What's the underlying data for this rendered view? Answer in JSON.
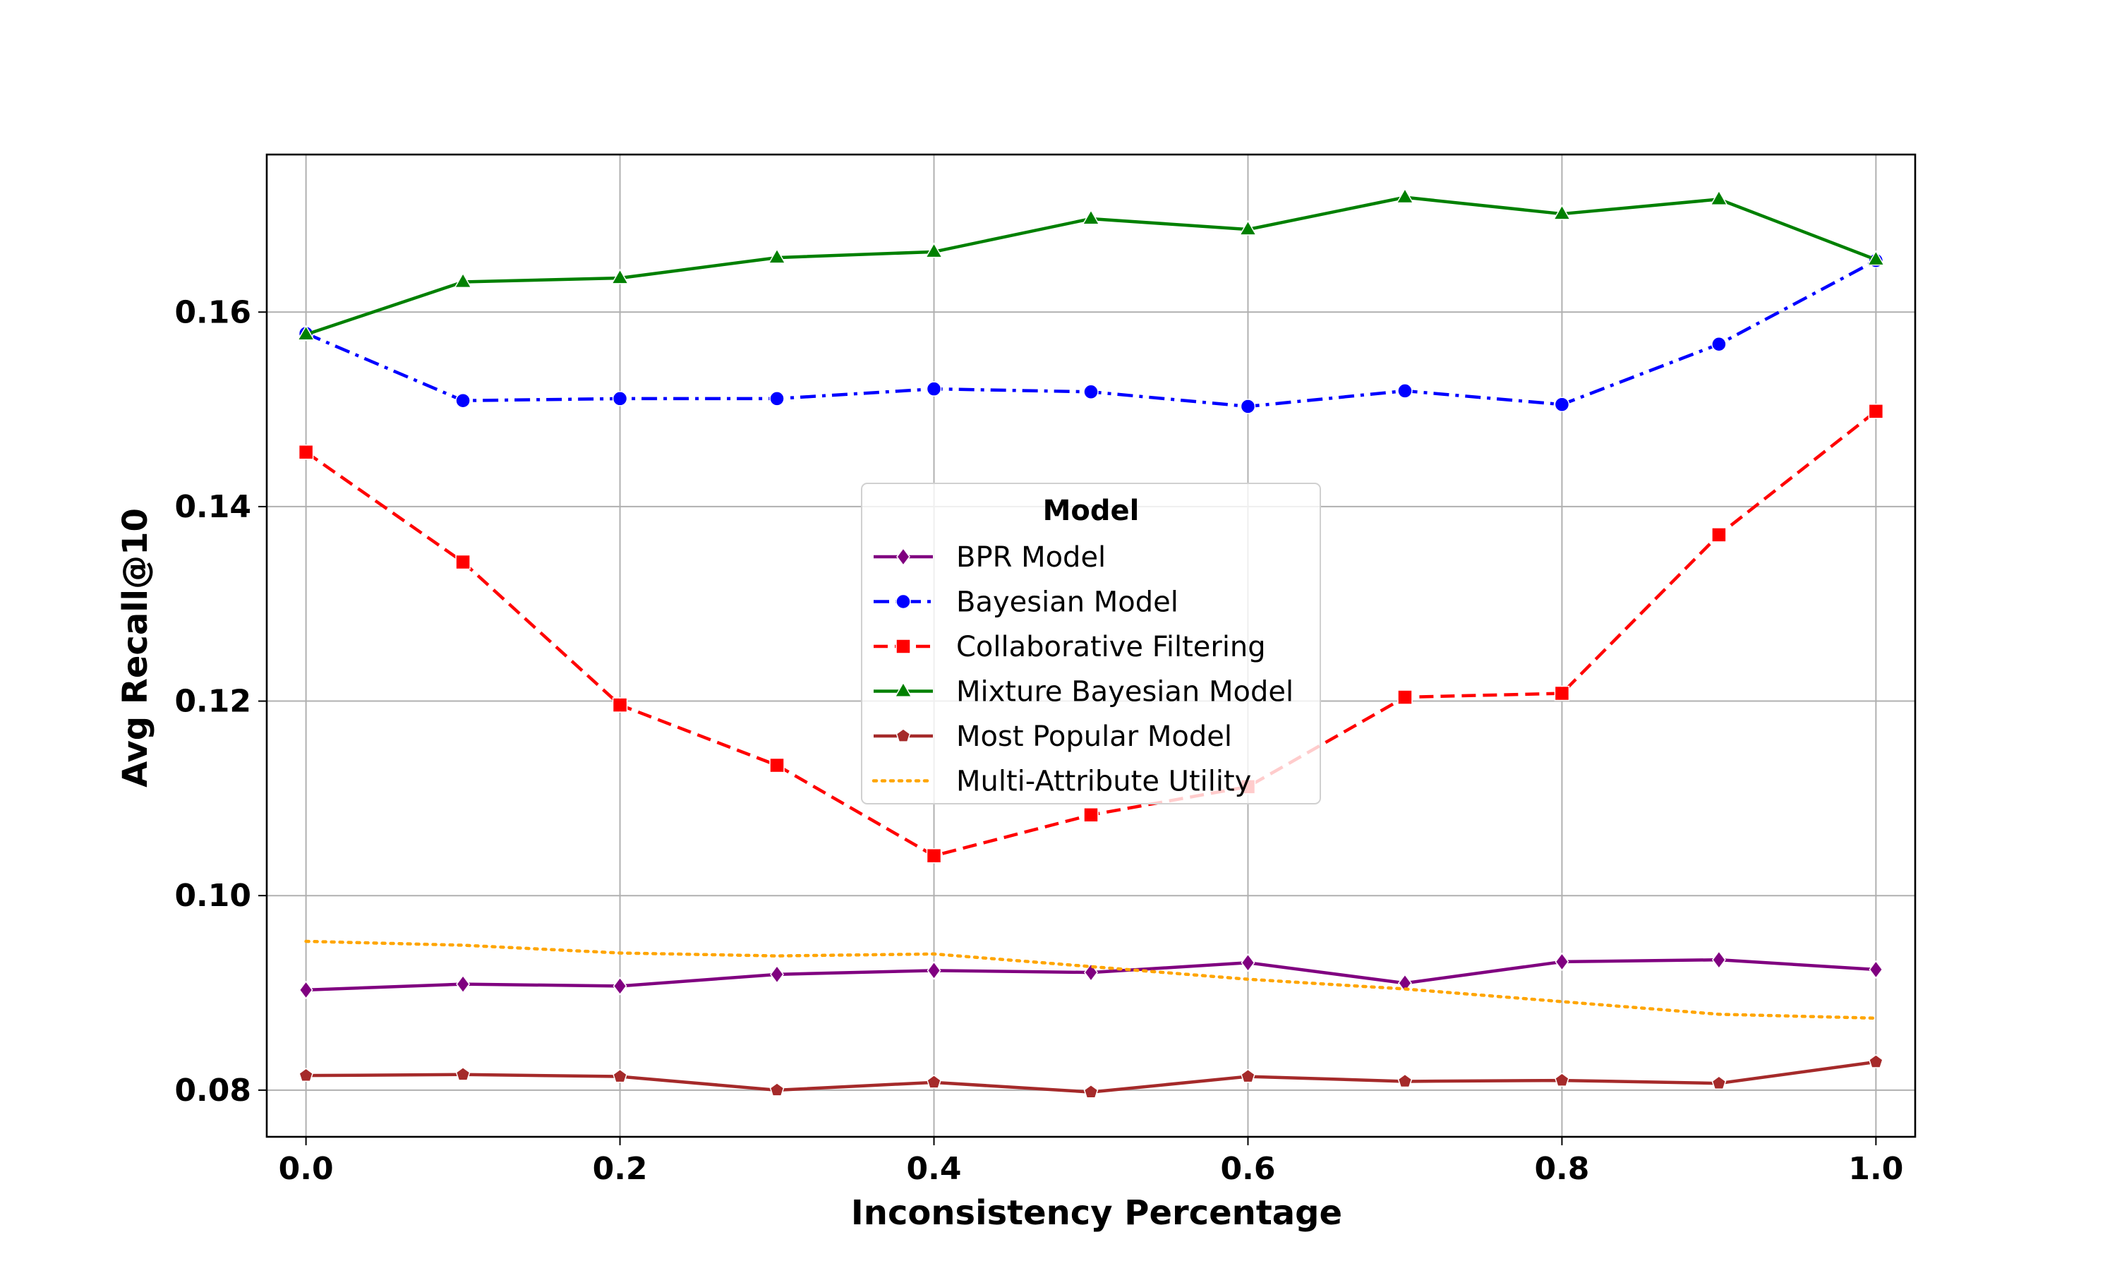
{
  "chart_data": {
    "type": "line",
    "xlabel": "Inconsistency Percentage",
    "ylabel": "Avg Recall@10",
    "xlim": [
      -0.025,
      1.025
    ],
    "ylim": [
      0.0752,
      0.1762
    ],
    "xticks": [
      0.0,
      0.2,
      0.4,
      0.6,
      0.8,
      1.0
    ],
    "yticks": [
      0.08,
      0.1,
      0.12,
      0.14,
      0.16
    ],
    "xtick_labels": [
      "0.0",
      "0.2",
      "0.4",
      "0.6",
      "0.8",
      "1.0"
    ],
    "ytick_labels": [
      "0.08",
      "0.10",
      "0.12",
      "0.14",
      "0.16"
    ],
    "grid": true,
    "legend": {
      "title": "Model",
      "position": "center"
    },
    "x": [
      0.0,
      0.1,
      0.2,
      0.3,
      0.4,
      0.5,
      0.6,
      0.7,
      0.8,
      0.9,
      1.0
    ],
    "series": [
      {
        "name": "BPR Model",
        "color": "#800080",
        "dash": "solid",
        "marker": "diamond",
        "values": [
          0.0903,
          0.0909,
          0.0907,
          0.0919,
          0.0923,
          0.0921,
          0.0931,
          0.091,
          0.0932,
          0.0934,
          0.0924
        ]
      },
      {
        "name": "Bayesian Model",
        "color": "#0000ff",
        "dash": "dashdot",
        "marker": "circle",
        "values": [
          0.1578,
          0.1509,
          0.1511,
          0.1511,
          0.1521,
          0.1518,
          0.1503,
          0.1519,
          0.1505,
          0.1567,
          0.1653
        ]
      },
      {
        "name": "Collaborative Filtering",
        "color": "#ff0000",
        "dash": "dashed",
        "marker": "square",
        "values": [
          0.1456,
          0.1343,
          0.1196,
          0.1134,
          0.1041,
          0.1083,
          0.1112,
          0.1204,
          0.1208,
          0.1371,
          0.1498
        ]
      },
      {
        "name": "Mixture Bayesian Model",
        "color": "#008000",
        "dash": "solid",
        "marker": "triangle",
        "values": [
          0.1577,
          0.1631,
          0.1635,
          0.1656,
          0.1662,
          0.1696,
          0.1685,
          0.1718,
          0.1701,
          0.1716,
          0.1654
        ]
      },
      {
        "name": "Most Popular Model",
        "color": "#a52a2a",
        "dash": "solid",
        "marker": "pentagon",
        "values": [
          0.0815,
          0.0816,
          0.0814,
          0.08,
          0.0808,
          0.0798,
          0.0814,
          0.0809,
          0.081,
          0.0807,
          0.0829
        ]
      },
      {
        "name": "Multi-Attribute Utility",
        "color": "#ffa500",
        "dash": "dotted",
        "marker": "none",
        "values": [
          0.0953,
          0.0949,
          0.0941,
          0.0938,
          0.094,
          0.0927,
          0.0914,
          0.0904,
          0.0891,
          0.0878,
          0.0874
        ]
      }
    ]
  }
}
